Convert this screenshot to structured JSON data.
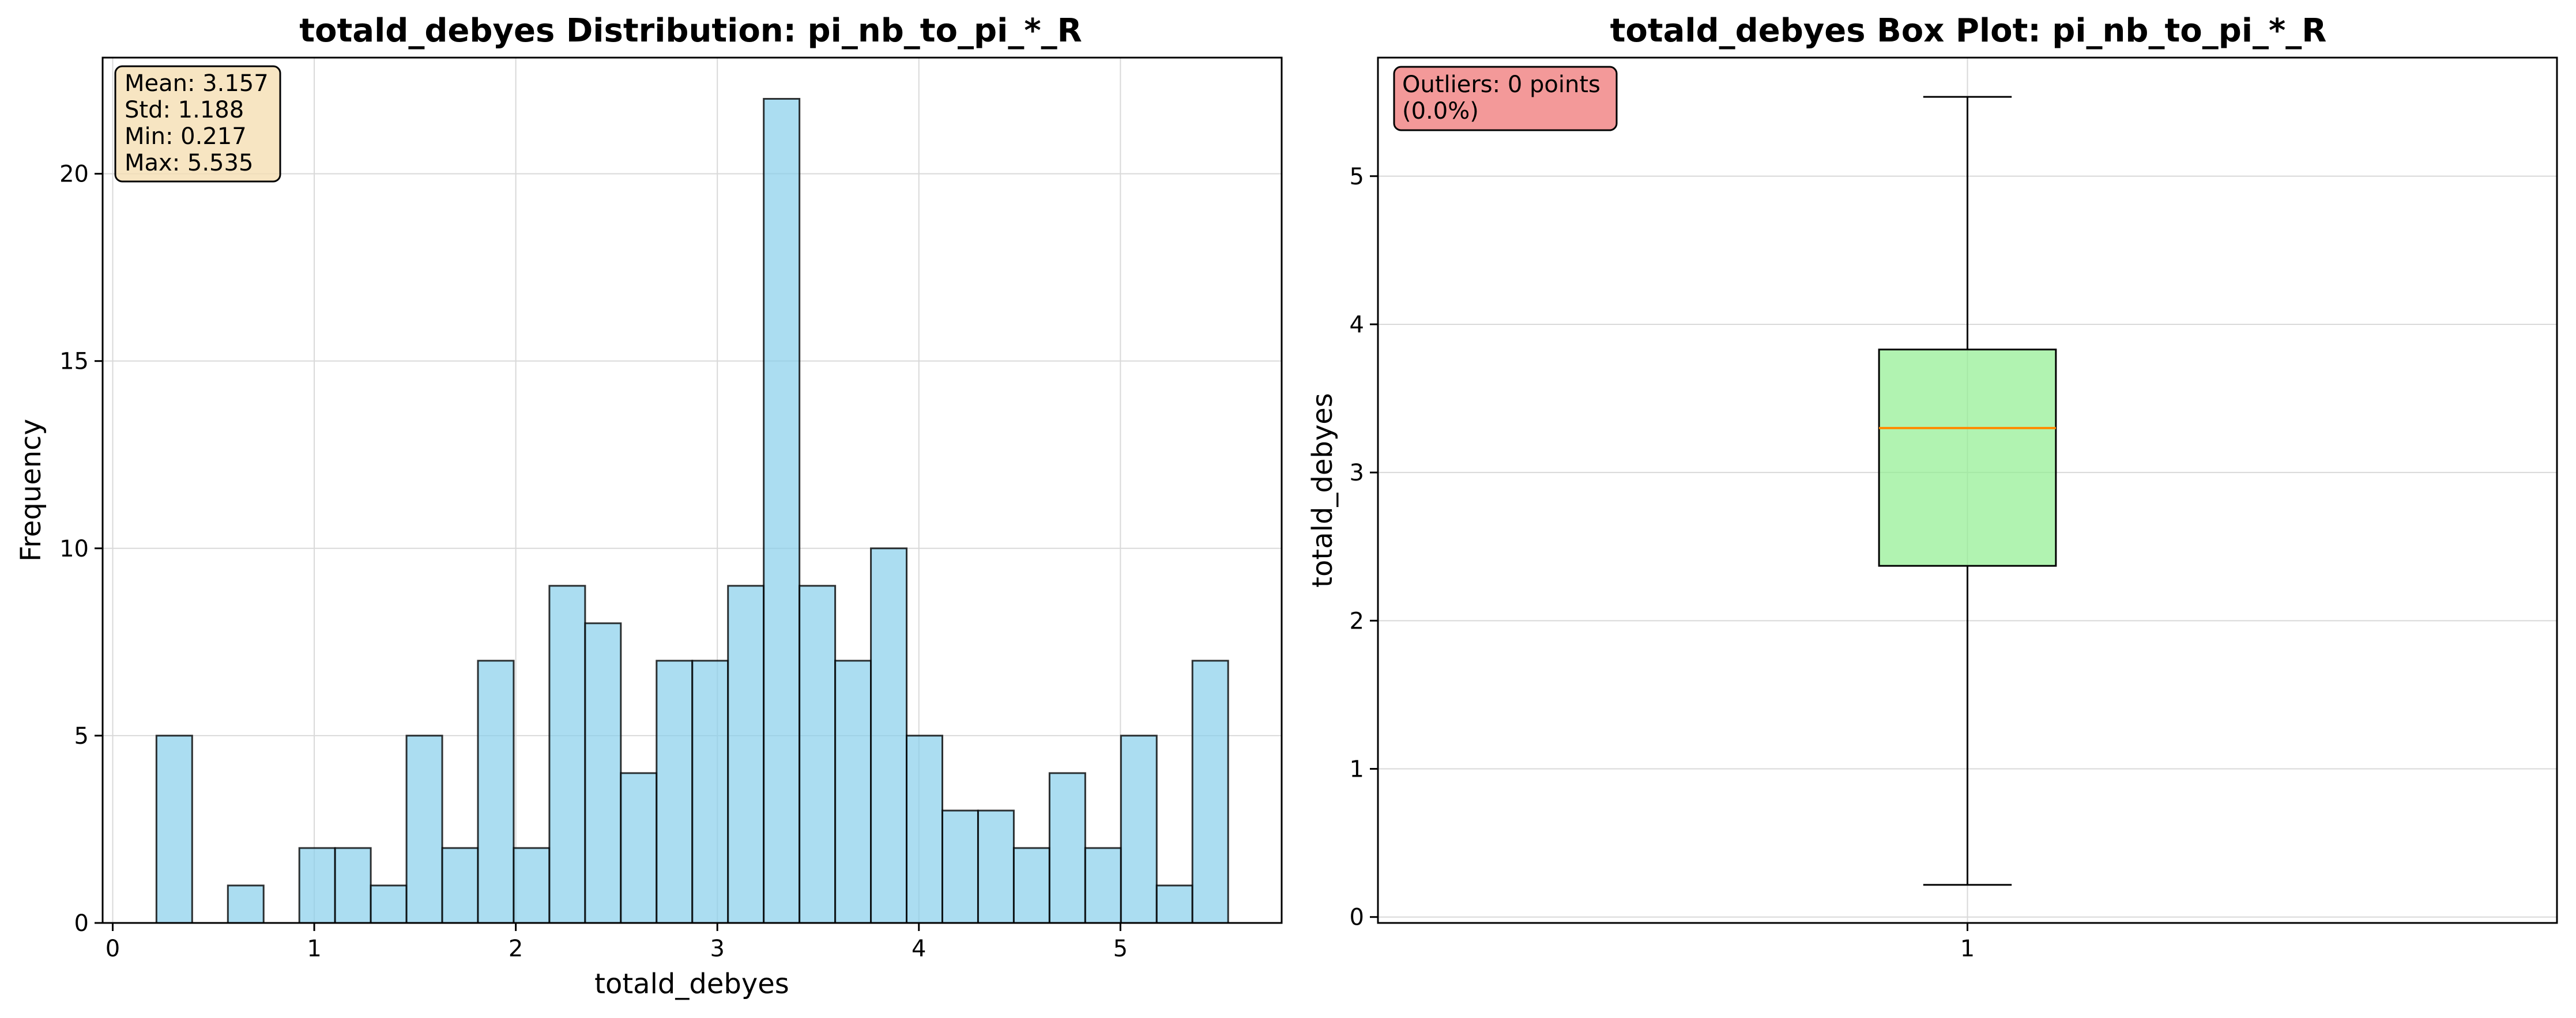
{
  "chart_data": [
    {
      "type": "bar",
      "subtype": "histogram",
      "title": "totald_debyes Distribution: pi_nb_to_pi_*_R",
      "xlabel": "totald_debyes",
      "ylabel": "Frequency",
      "xlim": [
        -0.05,
        5.8
      ],
      "ylim": [
        0,
        23.1
      ],
      "xticks": [
        0,
        1,
        2,
        3,
        4,
        5
      ],
      "yticks": [
        0,
        5,
        10,
        15,
        20
      ],
      "grid": true,
      "bar_color": "#87ceeb",
      "bin_start": 0.217,
      "bin_width": 0.17725,
      "counts": [
        5,
        0,
        1,
        0,
        2,
        2,
        1,
        5,
        2,
        7,
        2,
        9,
        8,
        4,
        7,
        7,
        9,
        22,
        9,
        7,
        10,
        5,
        3,
        3,
        2,
        4,
        2,
        5,
        1,
        7
      ],
      "stats_lines": [
        "Mean: 3.157",
        "Std: 1.188",
        "Min: 0.217",
        "Max: 5.535"
      ],
      "stats_box_color": "#f5deb3"
    },
    {
      "type": "box",
      "title": "totald_debyes Box Plot: pi_nb_to_pi_*_R",
      "xlabel": "",
      "ylabel": "totald_debyes",
      "xlim": [
        0.5,
        1.5
      ],
      "ylim": [
        -0.04,
        5.8
      ],
      "xticks": [
        1
      ],
      "yticks": [
        0,
        1,
        2,
        3,
        4,
        5
      ],
      "grid": true,
      "box": {
        "position": 1,
        "whisker_low": 0.217,
        "q1": 2.37,
        "median": 3.3,
        "q3": 3.83,
        "whisker_high": 5.535
      },
      "box_color": "#90ee90",
      "median_color": "#ff8c00",
      "outlier_lines": [
        "Outliers: 0 points",
        "(0.0%)"
      ],
      "outlier_box_color": "#f08080"
    }
  ]
}
